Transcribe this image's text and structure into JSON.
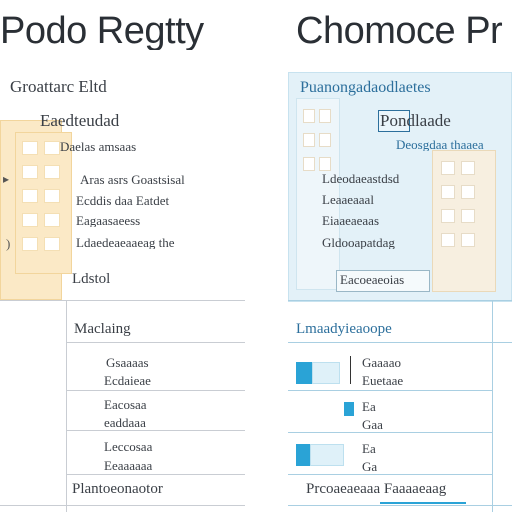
{
  "left": {
    "title": "Podo Regtty",
    "header": "Groattarc Eltd",
    "subheader": "Eaedteudad",
    "meta": "Daelas amsaas",
    "lines": [
      "Aras asrs Goastsisal",
      "Ecddis daa Eatdet",
      "Eagaasaeess",
      "Ldaedeaeaaeag the"
    ],
    "footer_label": "Ldstol",
    "section_label": "Maclaing",
    "rows": [
      "Gsaaaas",
      "Ecdaieae",
      "Eacosaa",
      "eaddaaa",
      "Leccosaa",
      "Eeaaaaaa"
    ],
    "bottom": "Plantoeonaotor"
  },
  "right": {
    "title": "Chomoce Pr",
    "header": "Puanongadaodlaetes",
    "badge": "Pondlaade",
    "subheader": "Deosgdaa thaaea",
    "lines": [
      "Ldeodaeastdsd",
      "Leaaeaaal",
      "Eiaaeaeaas",
      "Gldooapatdag"
    ],
    "footer_label": "Eacoeaeoias",
    "section_label": "Lmaadyieaoope",
    "rows": [
      "Gaaaao",
      "Euetaae",
      "Ea",
      "Gaa",
      "Ea",
      "Ga"
    ],
    "bottom": "Prcoaeaeaaa Faaaaeaag"
  }
}
